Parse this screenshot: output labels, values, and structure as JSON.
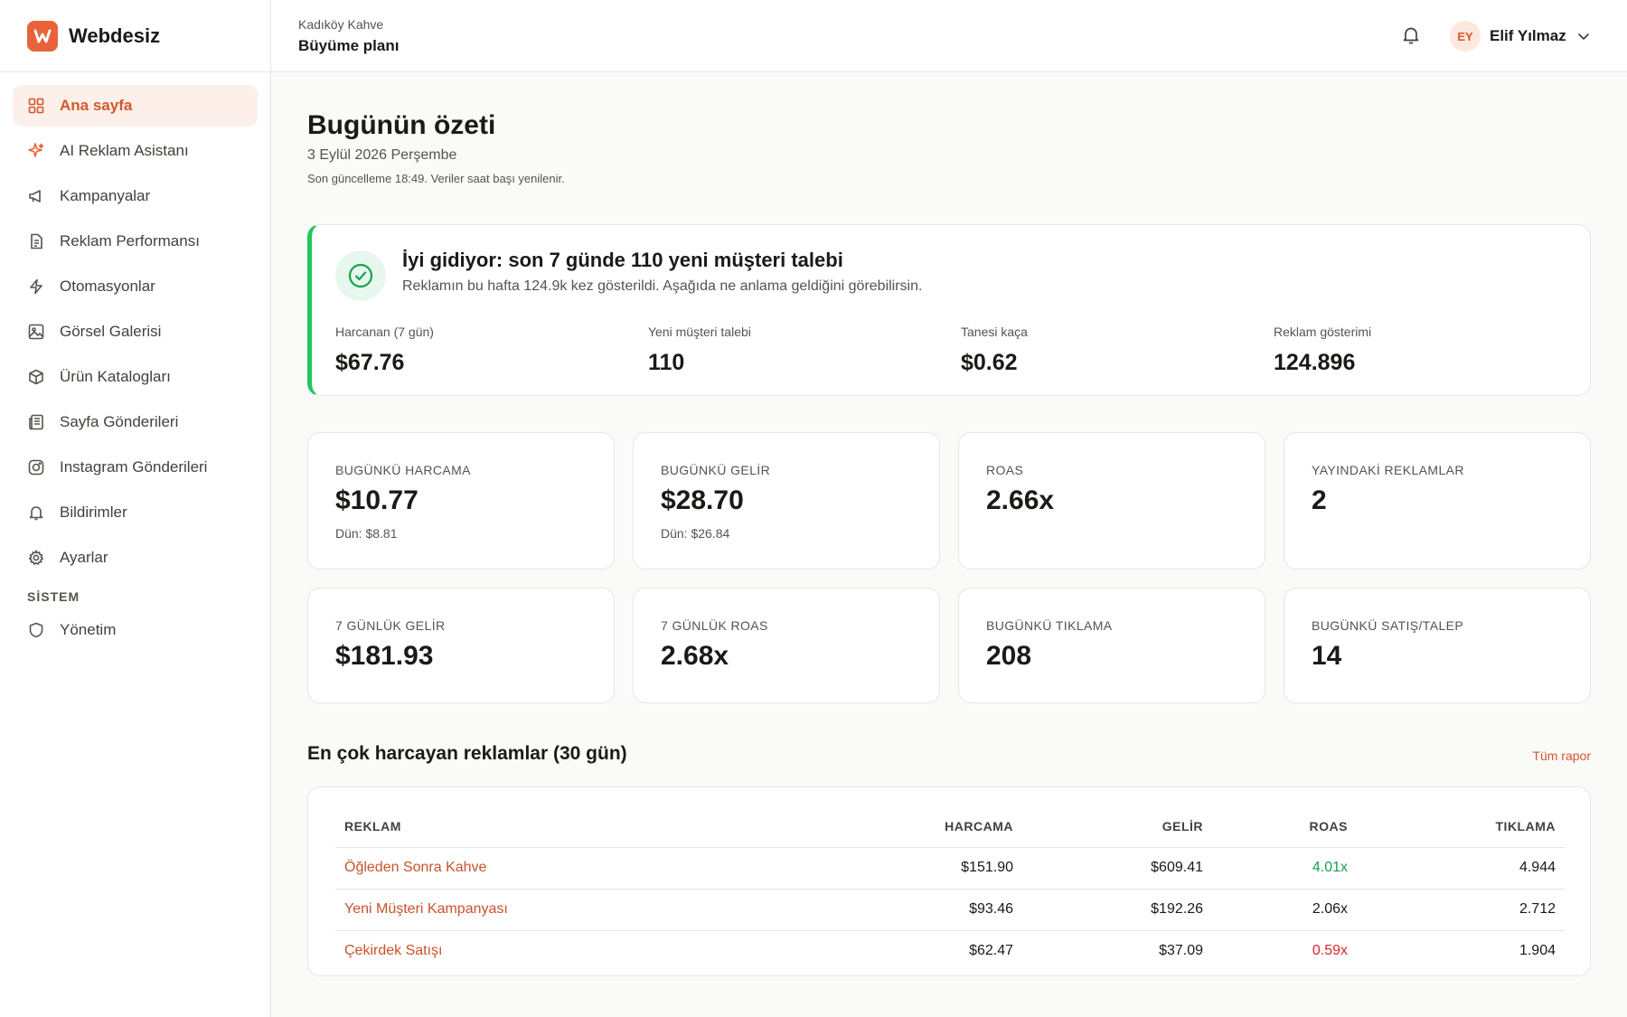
{
  "brand": {
    "name": "Webdesiz"
  },
  "colors": {
    "accent": "#e8633a",
    "success": "#22c55e",
    "danger": "#dc2626"
  },
  "sidebar": {
    "items": [
      {
        "label": "Ana sayfa",
        "icon": "dashboard-grid-icon",
        "active": true
      },
      {
        "label": "AI Reklam Asistanı",
        "icon": "sparkle-icon"
      },
      {
        "label": "Kampanyalar",
        "icon": "megaphone-icon"
      },
      {
        "label": "Reklam Performansı",
        "icon": "document-icon"
      },
      {
        "label": "Otomasyonlar",
        "icon": "lightning-icon"
      },
      {
        "label": "Görsel Galerisi",
        "icon": "image-icon"
      },
      {
        "label": "Ürün Katalogları",
        "icon": "box-icon"
      },
      {
        "label": "Sayfa Gönderileri",
        "icon": "newspaper-icon"
      },
      {
        "label": "Instagram Gönderileri",
        "icon": "instagram-icon"
      },
      {
        "label": "Bildirimler",
        "icon": "bell-icon"
      },
      {
        "label": "Ayarlar",
        "icon": "gear-icon"
      }
    ],
    "section_label": "SİSTEM",
    "system_items": [
      {
        "label": "Yönetim",
        "icon": "shield-icon"
      }
    ]
  },
  "header": {
    "account": "Kadıköy Kahve",
    "plan": "Büyüme planı",
    "user": {
      "initials": "EY",
      "name": "Elif Yılmaz"
    }
  },
  "summary": {
    "title": "Bugünün özeti",
    "date": "3 Eylül 2026 Perşembe",
    "updated": "Son güncelleme 18:49. Veriler saat başı yenilenir."
  },
  "hero": {
    "title": "İyi gidiyor: son 7 günde 110 yeni müşteri talebi",
    "subtitle": "Reklamın bu hafta 124.9k kez gösterildi. Aşağıda ne anlama geldiğini görebilirsin.",
    "stats": [
      {
        "label": "Harcanan (7 gün)",
        "value": "$67.76"
      },
      {
        "label": "Yeni müşteri talebi",
        "value": "110"
      },
      {
        "label": "Tanesi kaça",
        "value": "$0.62"
      },
      {
        "label": "Reklam gösterimi",
        "value": "124.896"
      }
    ]
  },
  "kpis": [
    {
      "label": "BUGÜNKÜ HARCAMA",
      "value": "$10.77",
      "sub": "Dün: $8.81"
    },
    {
      "label": "BUGÜNKÜ GELİR",
      "value": "$28.70",
      "sub": "Dün: $26.84"
    },
    {
      "label": "ROAS",
      "value": "2.66x",
      "sub": ""
    },
    {
      "label": "YAYINDAKİ REKLAMLAR",
      "value": "2",
      "sub": ""
    },
    {
      "label": "7 GÜNLÜK GELİR",
      "value": "$181.93",
      "sub": ""
    },
    {
      "label": "7 GÜNLÜK ROAS",
      "value": "2.68x",
      "sub": ""
    },
    {
      "label": "BUGÜNKÜ TIKLAMA",
      "value": "208",
      "sub": ""
    },
    {
      "label": "BUGÜNKÜ SATIŞ/TALEP",
      "value": "14",
      "sub": ""
    }
  ],
  "top_ads": {
    "title": "En çok harcayan reklamlar (30 gün)",
    "link": "Tüm rapor",
    "columns": [
      "REKLAM",
      "HARCAMA",
      "GELİR",
      "ROAS",
      "TIKLAMA"
    ],
    "rows": [
      {
        "name": "Öğleden Sonra Kahve",
        "spend": "$151.90",
        "revenue": "$609.41",
        "roas": "4.01x",
        "clicks": "4.944",
        "roas_status": "good"
      },
      {
        "name": "Yeni Müşteri Kampanyası",
        "spend": "$93.46",
        "revenue": "$192.26",
        "roas": "2.06x",
        "clicks": "2.712",
        "roas_status": "neutral"
      },
      {
        "name": "Çekirdek Satışı",
        "spend": "$62.47",
        "revenue": "$37.09",
        "roas": "0.59x",
        "clicks": "1.904",
        "roas_status": "bad"
      }
    ]
  }
}
